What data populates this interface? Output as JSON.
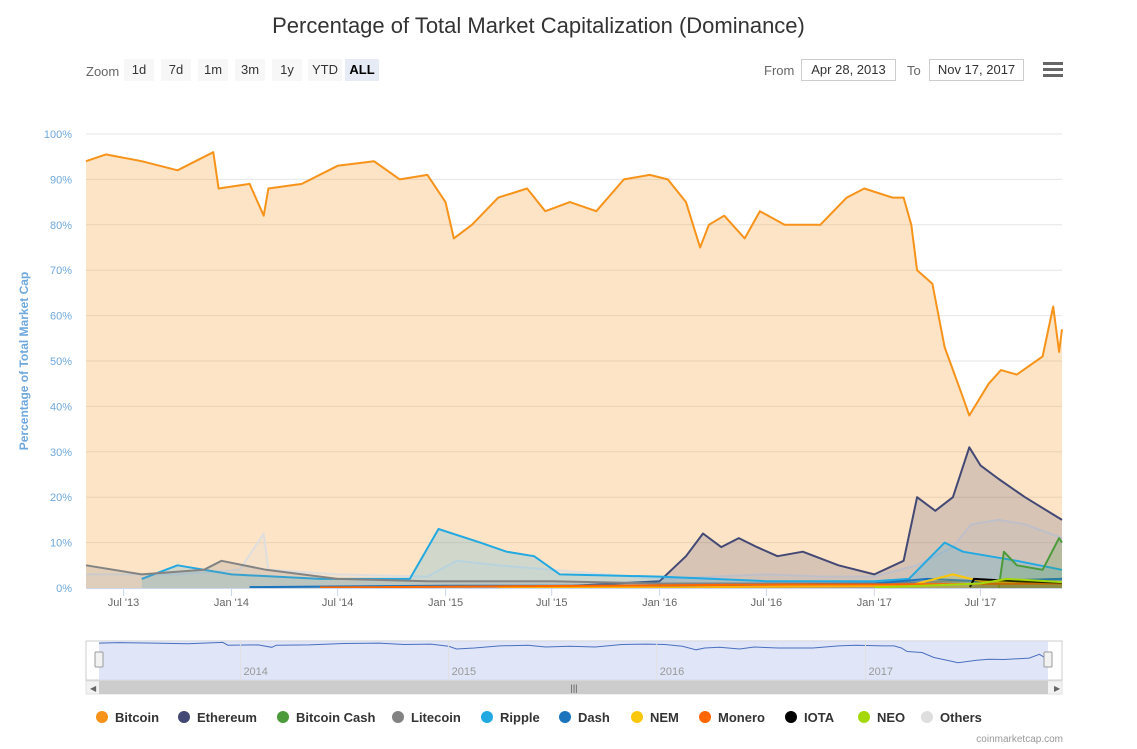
{
  "chart_data": {
    "type": "area",
    "title": "Percentage of Total Market Capitalization (Dominance)",
    "ylabel": "Percentage of Total Market Cap",
    "xlabel": "",
    "ylim": [
      0,
      100
    ],
    "y_ticks": [
      "0%",
      "10%",
      "20%",
      "30%",
      "40%",
      "50%",
      "60%",
      "70%",
      "80%",
      "90%",
      "100%"
    ],
    "x_range": [
      "2013-04-28",
      "2017-11-17"
    ],
    "x_ticks": [
      {
        "date": "2013-07-01",
        "label": "Jul '13"
      },
      {
        "date": "2014-01-01",
        "label": "Jan '14"
      },
      {
        "date": "2014-07-01",
        "label": "Jul '14"
      },
      {
        "date": "2015-01-01",
        "label": "Jan '15"
      },
      {
        "date": "2015-07-01",
        "label": "Jul '15"
      },
      {
        "date": "2016-01-01",
        "label": "Jan '16"
      },
      {
        "date": "2016-07-01",
        "label": "Jul '16"
      },
      {
        "date": "2017-01-01",
        "label": "Jan '17"
      },
      {
        "date": "2017-07-01",
        "label": "Jul '17"
      }
    ],
    "navigator_years": [
      "2014",
      "2015",
      "2016",
      "2017"
    ],
    "grid": true,
    "legend_position": "bottom",
    "series": [
      {
        "name": "Bitcoin",
        "color": "#f7931a",
        "points": [
          [
            "2013-04-28",
            94
          ],
          [
            "2013-06-01",
            95.5
          ],
          [
            "2013-08-01",
            94
          ],
          [
            "2013-10-01",
            92
          ],
          [
            "2013-12-01",
            96
          ],
          [
            "2013-12-10",
            88
          ],
          [
            "2014-02-01",
            89
          ],
          [
            "2014-02-25",
            82
          ],
          [
            "2014-03-05",
            88
          ],
          [
            "2014-05-01",
            89
          ],
          [
            "2014-07-01",
            93
          ],
          [
            "2014-09-01",
            94
          ],
          [
            "2014-10-15",
            90
          ],
          [
            "2014-12-01",
            91
          ],
          [
            "2015-01-01",
            85
          ],
          [
            "2015-01-15",
            77
          ],
          [
            "2015-02-15",
            80
          ],
          [
            "2015-04-01",
            86
          ],
          [
            "2015-05-20",
            88
          ],
          [
            "2015-06-20",
            83
          ],
          [
            "2015-08-01",
            85
          ],
          [
            "2015-09-15",
            83
          ],
          [
            "2015-11-01",
            90
          ],
          [
            "2015-12-15",
            91
          ],
          [
            "2016-01-15",
            90
          ],
          [
            "2016-02-15",
            85
          ],
          [
            "2016-03-10",
            75
          ],
          [
            "2016-03-25",
            80
          ],
          [
            "2016-04-20",
            82
          ],
          [
            "2016-05-25",
            77
          ],
          [
            "2016-06-20",
            83
          ],
          [
            "2016-08-01",
            80
          ],
          [
            "2016-10-01",
            80
          ],
          [
            "2016-11-15",
            86
          ],
          [
            "2016-12-15",
            88
          ],
          [
            "2017-02-01",
            86
          ],
          [
            "2017-02-20",
            86
          ],
          [
            "2017-03-05",
            80
          ],
          [
            "2017-03-15",
            70
          ],
          [
            "2017-04-10",
            67
          ],
          [
            "2017-05-01",
            53
          ],
          [
            "2017-06-01",
            42
          ],
          [
            "2017-06-12",
            38
          ],
          [
            "2017-07-15",
            45
          ],
          [
            "2017-08-05",
            48
          ],
          [
            "2017-09-01",
            47
          ],
          [
            "2017-10-15",
            51
          ],
          [
            "2017-11-02",
            62
          ],
          [
            "2017-11-12",
            52
          ],
          [
            "2017-11-17",
            57
          ]
        ]
      },
      {
        "name": "Others",
        "color": "#dedede",
        "points": [
          [
            "2013-04-28",
            3
          ],
          [
            "2013-10-01",
            3
          ],
          [
            "2014-01-15",
            4
          ],
          [
            "2014-02-25",
            12
          ],
          [
            "2014-03-05",
            4
          ],
          [
            "2014-07-01",
            3
          ],
          [
            "2014-12-01",
            2.5
          ],
          [
            "2015-01-20",
            6
          ],
          [
            "2015-04-01",
            5
          ],
          [
            "2015-07-01",
            4
          ],
          [
            "2015-10-01",
            3
          ],
          [
            "2016-01-01",
            2
          ],
          [
            "2016-04-01",
            2.5
          ],
          [
            "2016-07-01",
            3
          ],
          [
            "2016-10-01",
            2.5
          ],
          [
            "2017-01-01",
            2.5
          ],
          [
            "2017-03-15",
            5
          ],
          [
            "2017-05-15",
            9
          ],
          [
            "2017-06-15",
            14
          ],
          [
            "2017-08-01",
            15
          ],
          [
            "2017-09-15",
            14
          ],
          [
            "2017-11-17",
            11
          ]
        ]
      },
      {
        "name": "Ethereum",
        "color": "#434875",
        "points": [
          [
            "2015-08-07",
            0.5
          ],
          [
            "2016-01-01",
            1.5
          ],
          [
            "2016-02-15",
            7
          ],
          [
            "2016-03-15",
            12
          ],
          [
            "2016-04-15",
            9
          ],
          [
            "2016-05-15",
            11
          ],
          [
            "2016-06-15",
            9
          ],
          [
            "2016-07-20",
            7
          ],
          [
            "2016-09-01",
            8
          ],
          [
            "2016-11-01",
            5
          ],
          [
            "2017-01-01",
            3
          ],
          [
            "2017-02-20",
            6
          ],
          [
            "2017-03-15",
            20
          ],
          [
            "2017-04-15",
            17
          ],
          [
            "2017-05-15",
            20
          ],
          [
            "2017-06-12",
            31
          ],
          [
            "2017-07-01",
            27
          ],
          [
            "2017-08-01",
            24
          ],
          [
            "2017-09-15",
            20
          ],
          [
            "2017-11-17",
            15
          ]
        ]
      },
      {
        "name": "Ripple",
        "color": "#23a9e1",
        "points": [
          [
            "2013-08-01",
            2
          ],
          [
            "2013-10-01",
            5
          ],
          [
            "2014-01-01",
            3
          ],
          [
            "2014-06-01",
            2
          ],
          [
            "2014-11-01",
            2
          ],
          [
            "2014-12-20",
            13
          ],
          [
            "2015-03-01",
            10
          ],
          [
            "2015-04-15",
            8
          ],
          [
            "2015-06-01",
            7
          ],
          [
            "2015-07-15",
            3
          ],
          [
            "2016-01-01",
            2.5
          ],
          [
            "2016-07-01",
            1.5
          ],
          [
            "2017-01-01",
            1.5
          ],
          [
            "2017-03-01",
            2
          ],
          [
            "2017-05-01",
            10
          ],
          [
            "2017-06-01",
            8
          ],
          [
            "2017-09-01",
            6
          ],
          [
            "2017-11-17",
            4
          ]
        ]
      },
      {
        "name": "Litecoin",
        "color": "#838383",
        "points": [
          [
            "2013-04-28",
            5
          ],
          [
            "2013-08-01",
            3
          ],
          [
            "2013-11-15",
            4
          ],
          [
            "2013-12-15",
            6
          ],
          [
            "2014-03-01",
            4
          ],
          [
            "2014-07-01",
            2
          ],
          [
            "2014-12-01",
            1.5
          ],
          [
            "2015-07-01",
            1.5
          ],
          [
            "2016-01-01",
            1
          ],
          [
            "2017-01-01",
            1
          ],
          [
            "2017-06-01",
            1.5
          ],
          [
            "2017-11-17",
            2
          ]
        ]
      },
      {
        "name": "Dash",
        "color": "#1c75bc",
        "points": [
          [
            "2014-02-01",
            0.2
          ],
          [
            "2015-01-01",
            0.5
          ],
          [
            "2016-01-01",
            0.5
          ],
          [
            "2017-01-01",
            1
          ],
          [
            "2017-04-01",
            2
          ],
          [
            "2017-07-01",
            1.5
          ],
          [
            "2017-11-17",
            2
          ]
        ]
      },
      {
        "name": "Bitcoin Cash",
        "color": "#4b9b3a",
        "points": [
          [
            "2017-08-01",
            0
          ],
          [
            "2017-08-10",
            8
          ],
          [
            "2017-09-01",
            5
          ],
          [
            "2017-10-15",
            4
          ],
          [
            "2017-11-12",
            11
          ],
          [
            "2017-11-17",
            10
          ]
        ]
      },
      {
        "name": "NEM",
        "color": "#fbc70a",
        "points": [
          [
            "2015-04-01",
            0.1
          ],
          [
            "2016-01-01",
            0.1
          ],
          [
            "2017-03-01",
            0.5
          ],
          [
            "2017-05-15",
            3
          ],
          [
            "2017-07-01",
            1.5
          ],
          [
            "2017-11-17",
            1
          ]
        ]
      },
      {
        "name": "Monero",
        "color": "#ff6600",
        "points": [
          [
            "2014-06-01",
            0.1
          ],
          [
            "2016-09-01",
            0.8
          ],
          [
            "2017-01-01",
            0.8
          ],
          [
            "2017-11-17",
            1
          ]
        ]
      },
      {
        "name": "IOTA",
        "color": "#000000",
        "points": [
          [
            "2017-06-13",
            0.2
          ],
          [
            "2017-06-20",
            2
          ],
          [
            "2017-09-01",
            1.5
          ],
          [
            "2017-11-17",
            1.2
          ]
        ]
      },
      {
        "name": "NEO",
        "color": "#a4d80b",
        "points": [
          [
            "2017-01-01",
            0.1
          ],
          [
            "2017-07-01",
            1
          ],
          [
            "2017-08-15",
            2
          ],
          [
            "2017-11-17",
            1.3
          ]
        ]
      }
    ],
    "legend_order": [
      "Bitcoin",
      "Ethereum",
      "Bitcoin Cash",
      "Litecoin",
      "Ripple",
      "Dash",
      "NEM",
      "Monero",
      "IOTA",
      "NEO",
      "Others"
    ]
  },
  "toolbar": {
    "zoom_label": "Zoom",
    "zoom_buttons": [
      "1d",
      "7d",
      "1m",
      "3m",
      "1y",
      "YTD",
      "ALL"
    ],
    "active_zoom": "ALL",
    "from_label": "From",
    "from_value": "Apr 28, 2013",
    "to_label": "To",
    "to_value": "Nov 17, 2017",
    "menu_icon": "hamburger-menu-icon"
  },
  "credits": "coinmarketcap.com"
}
